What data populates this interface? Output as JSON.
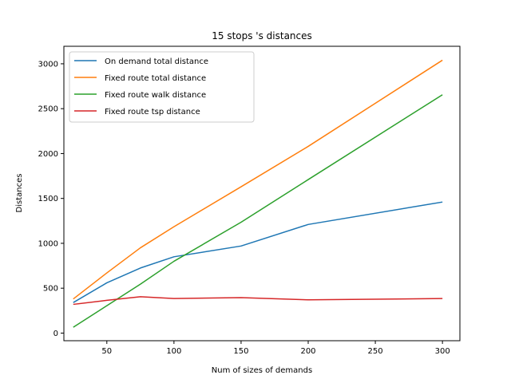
{
  "chart_data": {
    "type": "line",
    "title": "15 stops 's distances",
    "xlabel": "Num of sizes of demands",
    "ylabel": "Distances",
    "x": [
      25,
      50,
      75,
      100,
      150,
      200,
      300
    ],
    "xlim": [
      18,
      313
    ],
    "ylim": [
      -85,
      3195
    ],
    "xticks": [
      50,
      100,
      150,
      200,
      250,
      300
    ],
    "yticks": [
      0,
      500,
      1000,
      1500,
      2000,
      2500,
      3000
    ],
    "grid": false,
    "legend_position": "upper-left",
    "series": [
      {
        "name": "On demand total distance",
        "color": "#1f77b4",
        "values": [
          340,
          560,
          725,
          850,
          970,
          1210,
          1460
        ]
      },
      {
        "name": "Fixed route total distance",
        "color": "#ff7f0e",
        "values": [
          380,
          670,
          950,
          1185,
          1630,
          2080,
          3040
        ]
      },
      {
        "name": "Fixed route walk distance",
        "color": "#2ca02c",
        "values": [
          65,
          305,
          545,
          800,
          1235,
          1710,
          2655
        ]
      },
      {
        "name": "Fixed route tsp distance",
        "color": "#d62728",
        "values": [
          320,
          365,
          405,
          385,
          395,
          370,
          385
        ]
      }
    ]
  }
}
